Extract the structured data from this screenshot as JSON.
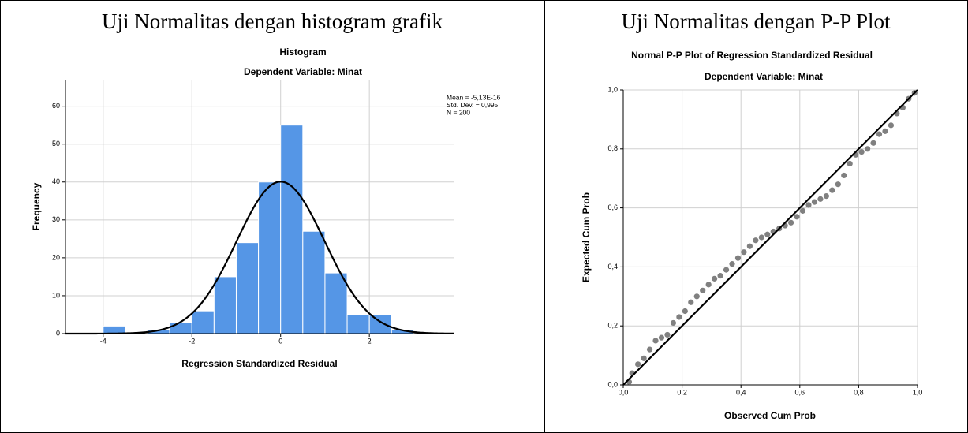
{
  "chart_data": [
    {
      "type": "histogram",
      "caption": "Uji Normalitas dengan histogram grafik",
      "title": "Histogram",
      "subtitle": "Dependent Variable: Minat",
      "xlabel": "Regression Standardized Residual",
      "ylabel": "Frequency",
      "bins": [
        -4,
        -3.5,
        -3,
        -2.5,
        -2,
        -1.5,
        -1,
        -0.5,
        0,
        0.5,
        1,
        1.5,
        2,
        2.5,
        3
      ],
      "values": [
        2,
        0,
        1,
        3,
        6,
        15,
        24,
        40,
        55,
        27,
        16,
        5,
        5,
        1
      ],
      "color": "#5596e6",
      "curve_color": "#000000",
      "stats": [
        {
          "value": -5.13e-16,
          "label": "Mean = -5,13E-16"
        },
        {
          "value": 0.995,
          "label": "Std. Dev. = 0,995"
        },
        {
          "value": 200,
          "label": "N = 200"
        }
      ],
      "xlim": [
        -4.85,
        3.9
      ],
      "xticks": [
        -4,
        -2,
        0,
        2
      ],
      "ylim": [
        0,
        67
      ],
      "yticks": [
        0,
        10,
        20,
        30,
        40,
        50,
        60
      ],
      "grid": true
    },
    {
      "type": "scatter",
      "caption": "Uji Normalitas dengan P-P Plot",
      "title": "Normal P-P Plot of Regression Standardized Residual",
      "subtitle": "Dependent Variable: Minat",
      "xlabel": "Observed Cum Prob",
      "ylabel": "Expected Cum Prob",
      "x": [
        0.02,
        0.03,
        0.05,
        0.07,
        0.09,
        0.11,
        0.13,
        0.15,
        0.17,
        0.19,
        0.21,
        0.23,
        0.25,
        0.27,
        0.29,
        0.31,
        0.33,
        0.35,
        0.37,
        0.39,
        0.41,
        0.43,
        0.45,
        0.47,
        0.49,
        0.51,
        0.53,
        0.55,
        0.57,
        0.59,
        0.61,
        0.63,
        0.65,
        0.67,
        0.69,
        0.71,
        0.73,
        0.75,
        0.77,
        0.79,
        0.81,
        0.83,
        0.85,
        0.87,
        0.89,
        0.91,
        0.93,
        0.95,
        0.97,
        0.99
      ],
      "values": [
        0.01,
        0.04,
        0.07,
        0.09,
        0.12,
        0.15,
        0.16,
        0.17,
        0.21,
        0.23,
        0.25,
        0.28,
        0.3,
        0.32,
        0.34,
        0.36,
        0.37,
        0.39,
        0.41,
        0.43,
        0.45,
        0.47,
        0.49,
        0.5,
        0.51,
        0.52,
        0.53,
        0.54,
        0.55,
        0.57,
        0.59,
        0.61,
        0.62,
        0.63,
        0.64,
        0.66,
        0.68,
        0.71,
        0.75,
        0.78,
        0.79,
        0.8,
        0.82,
        0.85,
        0.86,
        0.88,
        0.92,
        0.94,
        0.97,
        0.99
      ],
      "color": "#808080",
      "reference_line": true,
      "xlim": [
        0,
        1
      ],
      "xticks": [
        {
          "value": 0,
          "label": "0,0"
        },
        {
          "value": 0.2,
          "label": "0,2"
        },
        {
          "value": 0.4,
          "label": "0,4"
        },
        {
          "value": 0.6,
          "label": "0,6"
        },
        {
          "value": 0.8,
          "label": "0,8"
        },
        {
          "value": 1,
          "label": "1,0"
        }
      ],
      "ylim": [
        0,
        1
      ],
      "yticks": [
        {
          "value": 0,
          "label": "0,0"
        },
        {
          "value": 0.2,
          "label": "0,2"
        },
        {
          "value": 0.4,
          "label": "0,4"
        },
        {
          "value": 0.6,
          "label": "0,6"
        },
        {
          "value": 0.8,
          "label": "0,8"
        },
        {
          "value": 1,
          "label": "1,0"
        }
      ],
      "grid": true
    }
  ]
}
